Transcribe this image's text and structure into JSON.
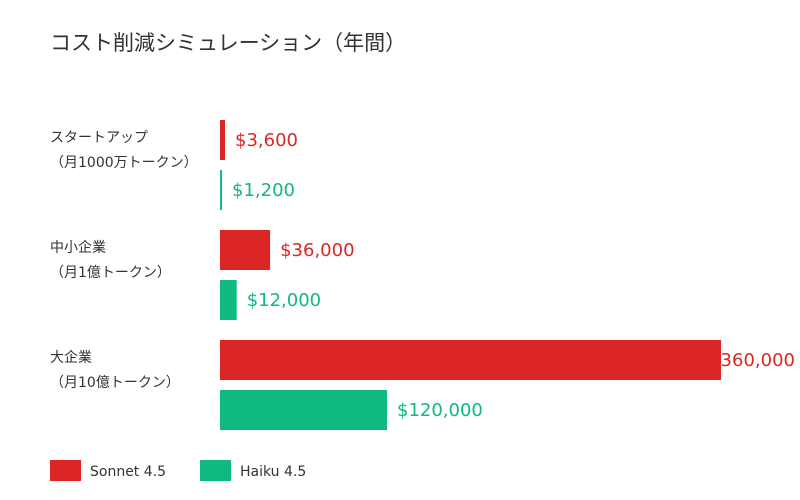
{
  "chart_data": {
    "type": "bar",
    "orientation": "horizontal",
    "title": "コスト削減シミュレーション（年間）",
    "categories": [
      {
        "line1": "スタートアップ",
        "line2": "（月1000万トークン）"
      },
      {
        "line1": "中小企業",
        "line2": "（月1億トークン）"
      },
      {
        "line1": "大企業",
        "line2": "（月10億トークン）"
      }
    ],
    "series": [
      {
        "name": "Sonnet 4.5",
        "color": "#dc2626",
        "values": [
          3600,
          36000,
          360000
        ],
        "value_labels": [
          "$3,600",
          "$36,000",
          "$360,000"
        ]
      },
      {
        "name": "Haiku 4.5",
        "color": "#10b981",
        "values": [
          1200,
          12000,
          120000
        ],
        "value_labels": [
          "$1,200",
          "$12,000",
          "$120,000"
        ]
      }
    ],
    "xlim": [
      0,
      360000
    ],
    "grid": false,
    "legend": "bottom-left"
  }
}
